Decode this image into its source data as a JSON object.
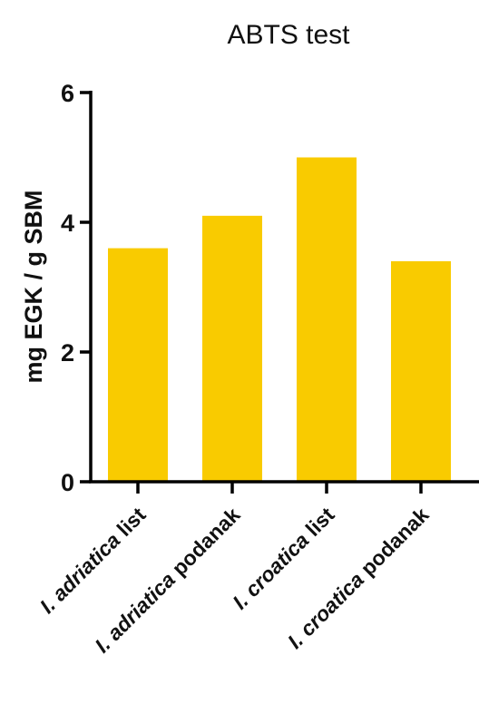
{
  "chart_data": {
    "type": "bar",
    "title": "ABTS test",
    "ylabel": "mg EGK / g SBM",
    "xlabel": "",
    "ylim": [
      0,
      6
    ],
    "yticks": [
      0,
      2,
      4,
      6
    ],
    "categories": [
      {
        "prefix": "I. ",
        "species": "adriatica",
        "suffix": " list"
      },
      {
        "prefix": "I. ",
        "species": "adriatica",
        "suffix": " podanak"
      },
      {
        "prefix": "I. ",
        "species": "croatica",
        "suffix": " list"
      },
      {
        "prefix": "I. ",
        "species": "croatica",
        "suffix": " podanak"
      }
    ],
    "values": [
      3.6,
      4.1,
      5.0,
      3.4
    ],
    "bar_color": "#f9cb00",
    "grid": false
  }
}
